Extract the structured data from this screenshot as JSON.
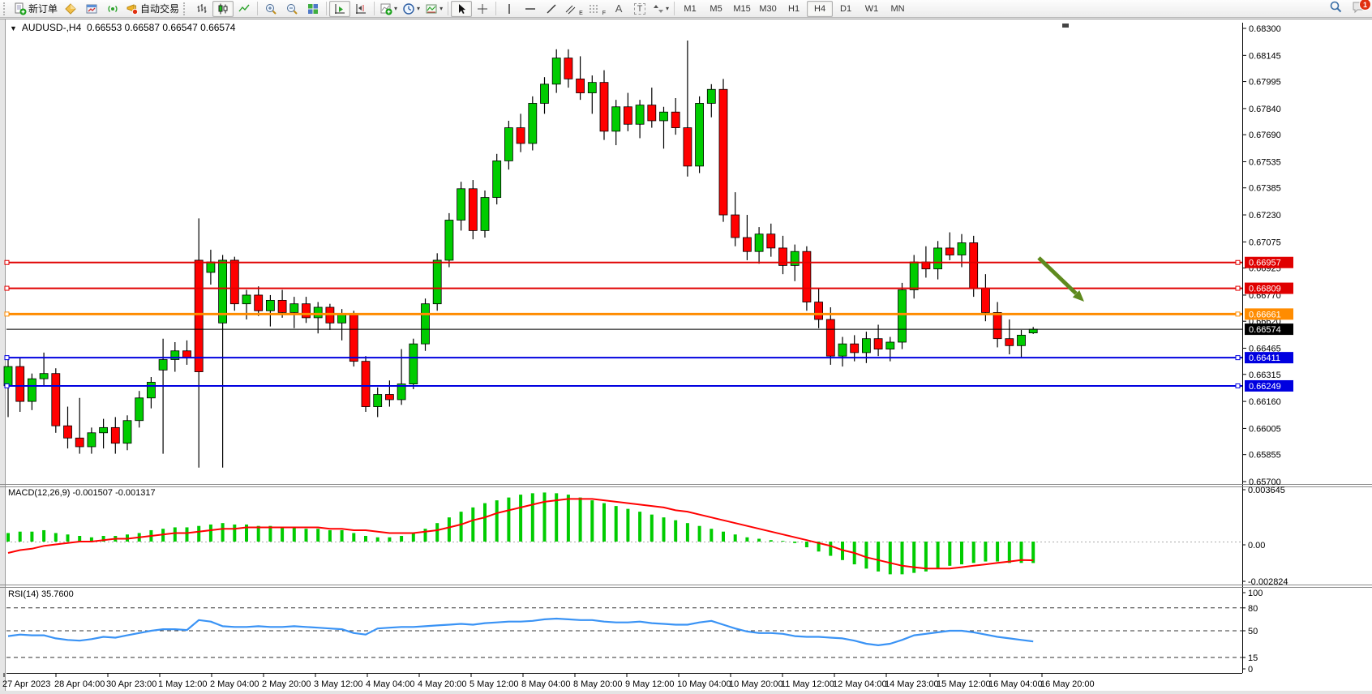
{
  "toolbar": {
    "new_order": "新订单",
    "autotrade": "自动交易",
    "timeframes": [
      "M1",
      "M5",
      "M15",
      "M30",
      "H1",
      "H4",
      "D1",
      "W1",
      "MN"
    ],
    "active_timeframe": "H4",
    "notification_badge": "1",
    "glyphs": {
      "text_tool": "A",
      "label_tool": "T",
      "channel": "E",
      "fibonacci": "F"
    }
  },
  "chart_header": {
    "symbol": "AUDUSD-,H4",
    "ohlc": "0.66553 0.66587 0.66547 0.66574"
  },
  "indicators": {
    "macd_label": "MACD(12,26,9) -0.001507 -0.001317",
    "rsi_label": "RSI(14) 35.7600",
    "macd_axis": [
      "0.003645",
      "0.00",
      "-0.002824"
    ],
    "rsi_axis": [
      "100",
      "80",
      "50",
      "15",
      "0"
    ]
  },
  "price_axis": [
    "0.68300",
    "0.68145",
    "0.67995",
    "0.67840",
    "0.67690",
    "0.67535",
    "0.67385",
    "0.67230",
    "0.67075",
    "0.66925",
    "0.66770",
    "0.66620",
    "0.66465",
    "0.66315",
    "0.66160",
    "0.66005",
    "0.65855",
    "0.65700"
  ],
  "time_axis": [
    "27 Apr 2023",
    "28 Apr 04:00",
    "30 Apr 23:00",
    "1 May 12:00",
    "2 May 04:00",
    "2 May 20:00",
    "3 May 12:00",
    "4 May 04:00",
    "4 May 20:00",
    "5 May 12:00",
    "8 May 04:00",
    "8 May 20:00",
    "9 May 12:00",
    "10 May 04:00",
    "10 May 20:00",
    "11 May 12:00",
    "12 May 04:00",
    "14 May 23:00",
    "15 May 12:00",
    "16 May 04:00",
    "16 May 20:00"
  ],
  "levels": [
    {
      "price": 0.66957,
      "label": "0.66957",
      "color": "#E00000",
      "width": 2
    },
    {
      "price": 0.66809,
      "label": "0.66809",
      "color": "#E00000",
      "width": 2
    },
    {
      "price": 0.66661,
      "label": "0.66661",
      "color": "#FF8C00",
      "width": 3
    },
    {
      "price": 0.66411,
      "label": "0.66411",
      "color": "#0000E0",
      "width": 2
    },
    {
      "price": 0.66249,
      "label": "0.66249",
      "color": "#0000E0",
      "width": 2
    }
  ],
  "current_price": {
    "label": "0.66574",
    "value": 0.66574,
    "color": "#000000"
  },
  "colors": {
    "bull": "#00CC00",
    "bear": "#FF0000",
    "wick": "#000000",
    "macd_hist": "#00CC00",
    "macd_signal": "#FF0000",
    "rsi_line": "#3A93F5",
    "arrow": "#5E8A1E"
  },
  "chart_data": {
    "type": "candlestick",
    "symbol": "AUDUSD-",
    "timeframe": "H4",
    "title": "AUDUSD-,H4",
    "price_range": [
      0.657,
      0.683
    ],
    "candles": [
      [
        0.6625,
        0.664,
        0.6607,
        0.6636
      ],
      [
        0.6636,
        0.6641,
        0.661,
        0.6616
      ],
      [
        0.6616,
        0.6632,
        0.6611,
        0.6629
      ],
      [
        0.6629,
        0.6644,
        0.6625,
        0.6632
      ],
      [
        0.6632,
        0.6635,
        0.6598,
        0.6602
      ],
      [
        0.6602,
        0.6613,
        0.6589,
        0.6595
      ],
      [
        0.6595,
        0.6618,
        0.6586,
        0.659
      ],
      [
        0.659,
        0.6601,
        0.6586,
        0.6598
      ],
      [
        0.6598,
        0.6606,
        0.6589,
        0.6601
      ],
      [
        0.6601,
        0.6607,
        0.6586,
        0.6592
      ],
      [
        0.6592,
        0.6608,
        0.6588,
        0.6605
      ],
      [
        0.6605,
        0.6622,
        0.6601,
        0.6618
      ],
      [
        0.6618,
        0.663,
        0.6612,
        0.6627
      ],
      [
        0.6634,
        0.6652,
        0.6586,
        0.664
      ],
      [
        0.664,
        0.665,
        0.6633,
        0.6645
      ],
      [
        0.6645,
        0.6651,
        0.6637,
        0.6641
      ],
      [
        0.6697,
        0.6721,
        0.6578,
        0.6633
      ],
      [
        0.669,
        0.6703,
        0.6683,
        0.6696
      ],
      [
        0.6661,
        0.67,
        0.6578,
        0.6697
      ],
      [
        0.6697,
        0.6699,
        0.6668,
        0.6672
      ],
      [
        0.6672,
        0.668,
        0.6663,
        0.6677
      ],
      [
        0.6677,
        0.6682,
        0.6665,
        0.6668
      ],
      [
        0.6668,
        0.6677,
        0.6659,
        0.6674
      ],
      [
        0.6674,
        0.668,
        0.6664,
        0.6667
      ],
      [
        0.6667,
        0.6676,
        0.6658,
        0.6672
      ],
      [
        0.6672,
        0.6676,
        0.6661,
        0.6664
      ],
      [
        0.6664,
        0.6673,
        0.6655,
        0.667
      ],
      [
        0.667,
        0.6672,
        0.6657,
        0.6661
      ],
      [
        0.6661,
        0.6669,
        0.6651,
        0.6666
      ],
      [
        0.6666,
        0.6668,
        0.6636,
        0.6639
      ],
      [
        0.6639,
        0.6642,
        0.661,
        0.6613
      ],
      [
        0.6613,
        0.6624,
        0.6607,
        0.662
      ],
      [
        0.662,
        0.6628,
        0.6613,
        0.6617
      ],
      [
        0.6617,
        0.6646,
        0.6614,
        0.6626
      ],
      [
        0.6626,
        0.6652,
        0.6623,
        0.6649
      ],
      [
        0.6649,
        0.6675,
        0.6645,
        0.6672
      ],
      [
        0.6672,
        0.6701,
        0.6668,
        0.6697
      ],
      [
        0.6697,
        0.6724,
        0.6693,
        0.672
      ],
      [
        0.672,
        0.6742,
        0.6714,
        0.6738
      ],
      [
        0.6738,
        0.6743,
        0.6709,
        0.6714
      ],
      [
        0.6714,
        0.6737,
        0.671,
        0.6733
      ],
      [
        0.6733,
        0.6758,
        0.6729,
        0.6754
      ],
      [
        0.6754,
        0.6777,
        0.6749,
        0.6773
      ],
      [
        0.6773,
        0.6781,
        0.6759,
        0.6764
      ],
      [
        0.6764,
        0.6791,
        0.676,
        0.6787
      ],
      [
        0.6787,
        0.6802,
        0.6781,
        0.6798
      ],
      [
        0.6798,
        0.6818,
        0.6793,
        0.6813
      ],
      [
        0.6813,
        0.6818,
        0.6796,
        0.6801
      ],
      [
        0.6801,
        0.6814,
        0.6789,
        0.6793
      ],
      [
        0.6793,
        0.6803,
        0.6781,
        0.6799
      ],
      [
        0.6799,
        0.6806,
        0.6766,
        0.6771
      ],
      [
        0.6771,
        0.6789,
        0.6763,
        0.6785
      ],
      [
        0.6785,
        0.6793,
        0.6771,
        0.6775
      ],
      [
        0.6775,
        0.6789,
        0.6767,
        0.6786
      ],
      [
        0.6786,
        0.6796,
        0.6773,
        0.6777
      ],
      [
        0.6777,
        0.6785,
        0.6761,
        0.6782
      ],
      [
        0.6782,
        0.679,
        0.6769,
        0.6773
      ],
      [
        0.6773,
        0.6823,
        0.6745,
        0.6751
      ],
      [
        0.6751,
        0.6791,
        0.6747,
        0.6787
      ],
      [
        0.6787,
        0.6798,
        0.6779,
        0.6795
      ],
      [
        0.6795,
        0.6801,
        0.6719,
        0.6723
      ],
      [
        0.6723,
        0.6736,
        0.6705,
        0.671
      ],
      [
        0.671,
        0.6723,
        0.6697,
        0.6702
      ],
      [
        0.6702,
        0.6716,
        0.6695,
        0.6712
      ],
      [
        0.6712,
        0.6718,
        0.6699,
        0.6704
      ],
      [
        0.6704,
        0.6711,
        0.6689,
        0.6694
      ],
      [
        0.6694,
        0.6706,
        0.6685,
        0.6702
      ],
      [
        0.6702,
        0.6705,
        0.6668,
        0.6673
      ],
      [
        0.6673,
        0.6681,
        0.6658,
        0.6663
      ],
      [
        0.6663,
        0.667,
        0.6637,
        0.6642
      ],
      [
        0.6642,
        0.6653,
        0.6636,
        0.6649
      ],
      [
        0.6649,
        0.6654,
        0.6639,
        0.6644
      ],
      [
        0.6644,
        0.6656,
        0.6638,
        0.6652
      ],
      [
        0.6652,
        0.666,
        0.6642,
        0.6646
      ],
      [
        0.6646,
        0.6653,
        0.6639,
        0.665
      ],
      [
        0.665,
        0.6684,
        0.6646,
        0.668
      ],
      [
        0.668,
        0.67,
        0.6675,
        0.6696
      ],
      [
        0.6696,
        0.6705,
        0.6687,
        0.6692
      ],
      [
        0.6692,
        0.6708,
        0.6686,
        0.6704
      ],
      [
        0.6704,
        0.6713,
        0.6697,
        0.67
      ],
      [
        0.67,
        0.6712,
        0.6693,
        0.6707
      ],
      [
        0.6707,
        0.6711,
        0.6676,
        0.6681
      ],
      [
        0.6681,
        0.6689,
        0.6662,
        0.6667
      ],
      [
        0.6667,
        0.6673,
        0.6647,
        0.6652
      ],
      [
        0.6652,
        0.6663,
        0.6643,
        0.6648
      ],
      [
        0.6648,
        0.6657,
        0.6641,
        0.6654
      ],
      [
        0.66553,
        0.66587,
        0.66547,
        0.66574
      ]
    ],
    "macd": {
      "range": [
        -0.002824,
        0.003645
      ],
      "main": [
        0.0006,
        0.0007,
        0.0007,
        0.0008,
        0.0006,
        0.0005,
        0.0004,
        0.0003,
        0.0004,
        0.0004,
        0.0005,
        0.0006,
        0.0008,
        0.0009,
        0.001,
        0.001,
        0.0011,
        0.0012,
        0.0013,
        0.0012,
        0.0012,
        0.0011,
        0.0011,
        0.001,
        0.001,
        0.0009,
        0.0009,
        0.0008,
        0.0008,
        0.0006,
        0.0004,
        0.0003,
        0.0003,
        0.0004,
        0.0006,
        0.0009,
        0.0013,
        0.0017,
        0.0021,
        0.0024,
        0.0027,
        0.0029,
        0.0031,
        0.0033,
        0.0034,
        0.00345,
        0.0034,
        0.0033,
        0.0031,
        0.0029,
        0.0027,
        0.0025,
        0.0023,
        0.0021,
        0.0019,
        0.0017,
        0.0015,
        0.0013,
        0.0011,
        0.0009,
        0.0007,
        0.0005,
        0.0003,
        0.0002,
        0.0001,
        5e-05,
        -0.0001,
        -0.0004,
        -0.0007,
        -0.001,
        -0.0013,
        -0.0016,
        -0.0019,
        -0.0021,
        -0.0023,
        -0.0023,
        -0.0022,
        -0.0021,
        -0.0019,
        -0.0017,
        -0.0016,
        -0.0015,
        -0.0014,
        -0.0014,
        -0.0015,
        -0.0015,
        -0.001507
      ],
      "signal": [
        -0.0008,
        -0.0006,
        -0.0005,
        -0.0003,
        -0.0002,
        -0.0001,
        0.0,
        0.0,
        0.0001,
        0.0002,
        0.0002,
        0.0003,
        0.0004,
        0.0005,
        0.0006,
        0.0006,
        0.0007,
        0.0008,
        0.0009,
        0.0009,
        0.001,
        0.001,
        0.001,
        0.001,
        0.001,
        0.001,
        0.001,
        0.0009,
        0.0009,
        0.0008,
        0.0008,
        0.0007,
        0.0006,
        0.0006,
        0.0006,
        0.0007,
        0.0008,
        0.001,
        0.0012,
        0.0015,
        0.0017,
        0.002,
        0.0022,
        0.0024,
        0.0026,
        0.0028,
        0.0029,
        0.003,
        0.003,
        0.003,
        0.0029,
        0.0028,
        0.0027,
        0.0026,
        0.0025,
        0.0024,
        0.0022,
        0.0021,
        0.0019,
        0.0017,
        0.0015,
        0.0013,
        0.0011,
        0.0009,
        0.0007,
        0.0005,
        0.0003,
        0.0001,
        -0.0001,
        -0.0003,
        -0.0006,
        -0.0008,
        -0.0011,
        -0.0013,
        -0.0015,
        -0.0017,
        -0.0018,
        -0.0019,
        -0.0019,
        -0.0019,
        -0.0018,
        -0.0017,
        -0.0016,
        -0.0015,
        -0.0014,
        -0.0013,
        -0.001317
      ]
    },
    "rsi": {
      "range": [
        0,
        100
      ],
      "guides": [
        80,
        50,
        15
      ],
      "values": [
        43,
        45,
        44,
        44,
        40,
        38,
        37,
        39,
        42,
        41,
        44,
        47,
        50,
        52,
        52,
        51,
        64,
        62,
        56,
        55,
        55,
        56,
        55,
        55,
        56,
        55,
        54,
        53,
        52,
        47,
        45,
        53,
        54,
        55,
        55,
        56,
        57,
        58,
        59,
        58,
        60,
        61,
        62,
        62,
        63,
        65,
        66,
        65,
        64,
        64,
        62,
        61,
        61,
        62,
        60,
        59,
        58,
        58,
        61,
        63,
        58,
        53,
        49,
        47,
        47,
        46,
        43,
        42,
        42,
        41,
        40,
        37,
        33,
        31,
        33,
        38,
        44,
        46,
        48,
        50,
        50,
        48,
        45,
        42,
        40,
        38,
        36
      ]
    },
    "annotations": [
      {
        "type": "arrow",
        "direction": "down-right",
        "color": "#5E8A1E",
        "from_price": 0.6699,
        "to_price": 0.6673
      }
    ]
  }
}
